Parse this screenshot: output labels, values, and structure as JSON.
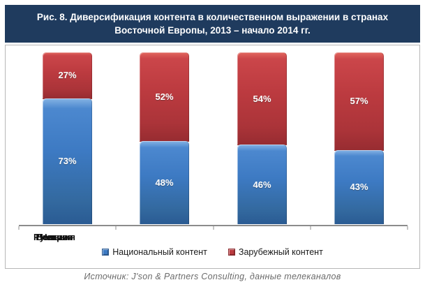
{
  "title": {
    "line1": "Рис. 8. Диверсификация контента в количественном выражении в странах",
    "line2": "Восточной Европы, 2013 – начало 2014 гг."
  },
  "chart_data": {
    "type": "bar",
    "stacked": true,
    "orientation": "vertical",
    "categories": [
      "Польша",
      "Венгрия",
      "Чехия",
      "Румыния"
    ],
    "series": [
      {
        "name": "Национальный контент",
        "color": "#3d7ac3",
        "values": [
          73,
          48,
          46,
          43
        ]
      },
      {
        "name": "Зарубежный контент",
        "color": "#bb3a3f",
        "values": [
          27,
          52,
          54,
          57
        ]
      }
    ],
    "value_suffix": "%",
    "ylim": [
      0,
      100
    ],
    "grid": false,
    "y_axis_visible": false,
    "legend_position": "bottom",
    "data_labels": "inside-center, white bold"
  },
  "footer": {
    "source": "Источник: J'son & Partners Consulting, данные телеканалов"
  },
  "colors": {
    "title_bg": "#1f3b5e",
    "title_text": "#ffffff",
    "chart_border": "#b7b7b7",
    "axis": "#8c8c8c",
    "background": "#ffffff"
  }
}
